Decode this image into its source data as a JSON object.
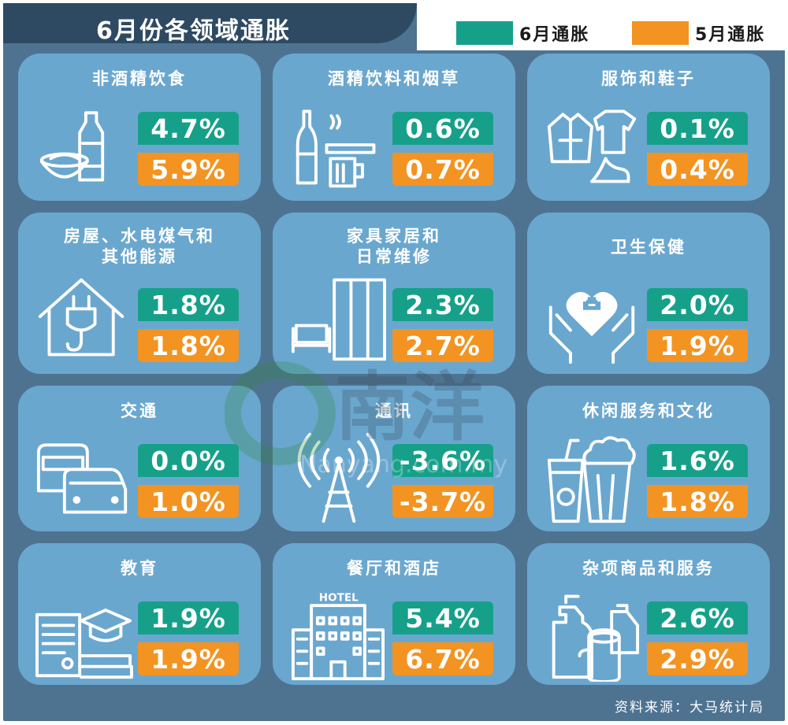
{
  "title": "6月份各领域通胀",
  "legend": [
    {
      "label": "6月通胀",
      "color": "#16a08a"
    },
    {
      "label": "5月通胀",
      "color": "#f39321"
    }
  ],
  "chart_data": {
    "type": "table",
    "series": [
      {
        "name": "6月通胀",
        "values": [
          4.7,
          0.6,
          0.1,
          1.8,
          2.3,
          2.0,
          0.0,
          -3.6,
          1.6,
          1.9,
          5.4,
          2.6
        ]
      },
      {
        "name": "5月通胀",
        "values": [
          5.9,
          0.7,
          0.4,
          1.8,
          2.7,
          1.9,
          1.0,
          -3.7,
          1.8,
          1.9,
          6.7,
          2.9
        ]
      }
    ],
    "categories": [
      "非酒精饮食",
      "酒精饮料和烟草",
      "服饰和鞋子",
      "房屋、水电煤气和其他能源",
      "家具家居和日常维修",
      "卫生保健",
      "交通",
      "通讯",
      "休闲服务和文化",
      "教育",
      "餐厅和酒店",
      "杂项商品和服务"
    ]
  },
  "cards": [
    {
      "title1": "非酒精饮食",
      "title2": "",
      "jun": "4.7%",
      "may": "5.9%",
      "icon": "bottle-bowl-icon"
    },
    {
      "title1": "酒精饮料和烟草",
      "title2": "",
      "jun": "0.6%",
      "may": "0.7%",
      "icon": "beer-cigarette-icon"
    },
    {
      "title1": "服饰和鞋子",
      "title2": "",
      "jun": "0.1%",
      "may": "0.4%",
      "icon": "clothing-icon"
    },
    {
      "title1": "房屋、水电煤气和",
      "title2": "其他能源",
      "jun": "1.8%",
      "may": "1.8%",
      "icon": "house-plug-icon"
    },
    {
      "title1": "家具家居和",
      "title2": "日常维修",
      "jun": "2.3%",
      "may": "2.7%",
      "icon": "furniture-icon"
    },
    {
      "title1": "卫生保健",
      "title2": "",
      "jun": "2.0%",
      "may": "1.9%",
      "icon": "health-hands-icon"
    },
    {
      "title1": "交通",
      "title2": "",
      "jun": "0.0%",
      "may": "1.0%",
      "icon": "cars-icon"
    },
    {
      "title1": "通讯",
      "title2": "",
      "jun": "-3.6%",
      "may": "-3.7%",
      "icon": "antenna-tower-icon"
    },
    {
      "title1": "休闲服务和文化",
      "title2": "",
      "jun": "1.6%",
      "may": "1.8%",
      "icon": "popcorn-drink-icon"
    },
    {
      "title1": "教育",
      "title2": "",
      "jun": "1.9%",
      "may": "1.9%",
      "icon": "graduation-icon"
    },
    {
      "title1": "餐厅和酒店",
      "title2": "",
      "jun": "5.4%",
      "may": "6.7%",
      "icon": "hotel-icon"
    },
    {
      "title1": "杂项商品和服务",
      "title2": "",
      "jun": "2.6%",
      "may": "2.9%",
      "icon": "cleaning-supplies-icon"
    }
  ],
  "hotel_sign": "HOTEL",
  "source": "资料来源：大马统计局",
  "watermark": {
    "logo_text": "南洋",
    "url_text": "Nanyang.com.my"
  }
}
